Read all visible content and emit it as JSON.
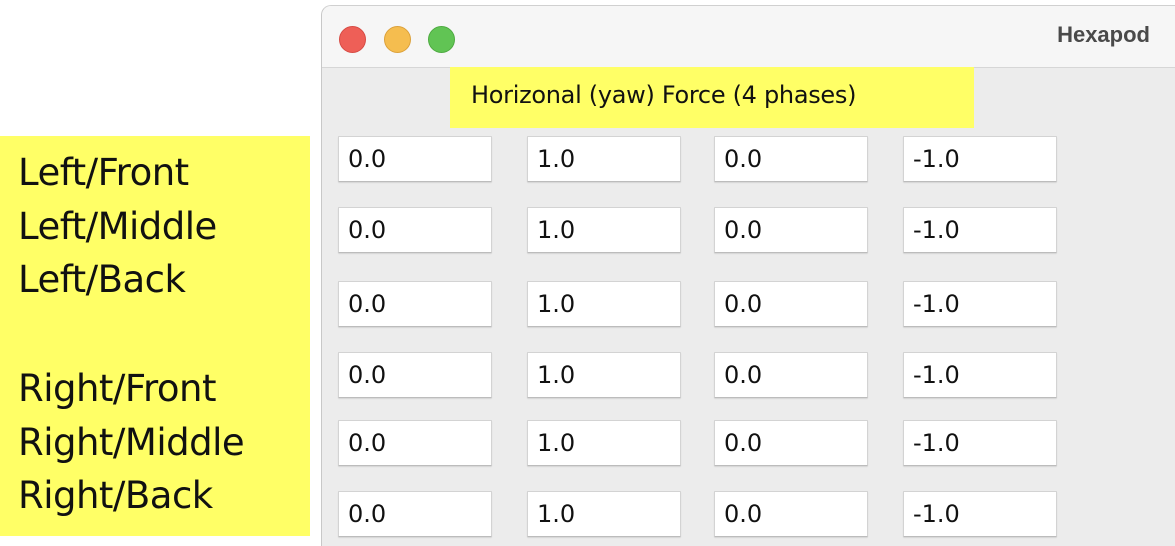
{
  "window": {
    "title": "Hexapod"
  },
  "section_title": "Horizonal (yaw) Force (4 phases)",
  "legs": [
    "Left/Front",
    "Left/Middle",
    "Left/Back",
    "Right/Front",
    "Right/Middle",
    "Right/Back"
  ],
  "rows": [
    [
      "0.0",
      "1.0",
      "0.0",
      "-1.0"
    ],
    [
      "0.0",
      "1.0",
      "0.0",
      "-1.0"
    ],
    [
      "0.0",
      "1.0",
      "0.0",
      "-1.0"
    ],
    [
      "0.0",
      "1.0",
      "0.0",
      "-1.0"
    ],
    [
      "0.0",
      "1.0",
      "0.0",
      "-1.0"
    ],
    [
      "0.0",
      "1.0",
      "0.0",
      "-1.0"
    ]
  ],
  "colors": {
    "highlight": "#ffff66",
    "close": "#ee5f57",
    "minimize": "#f5bd4f",
    "zoom": "#61c454",
    "window_bg": "#ececec"
  }
}
